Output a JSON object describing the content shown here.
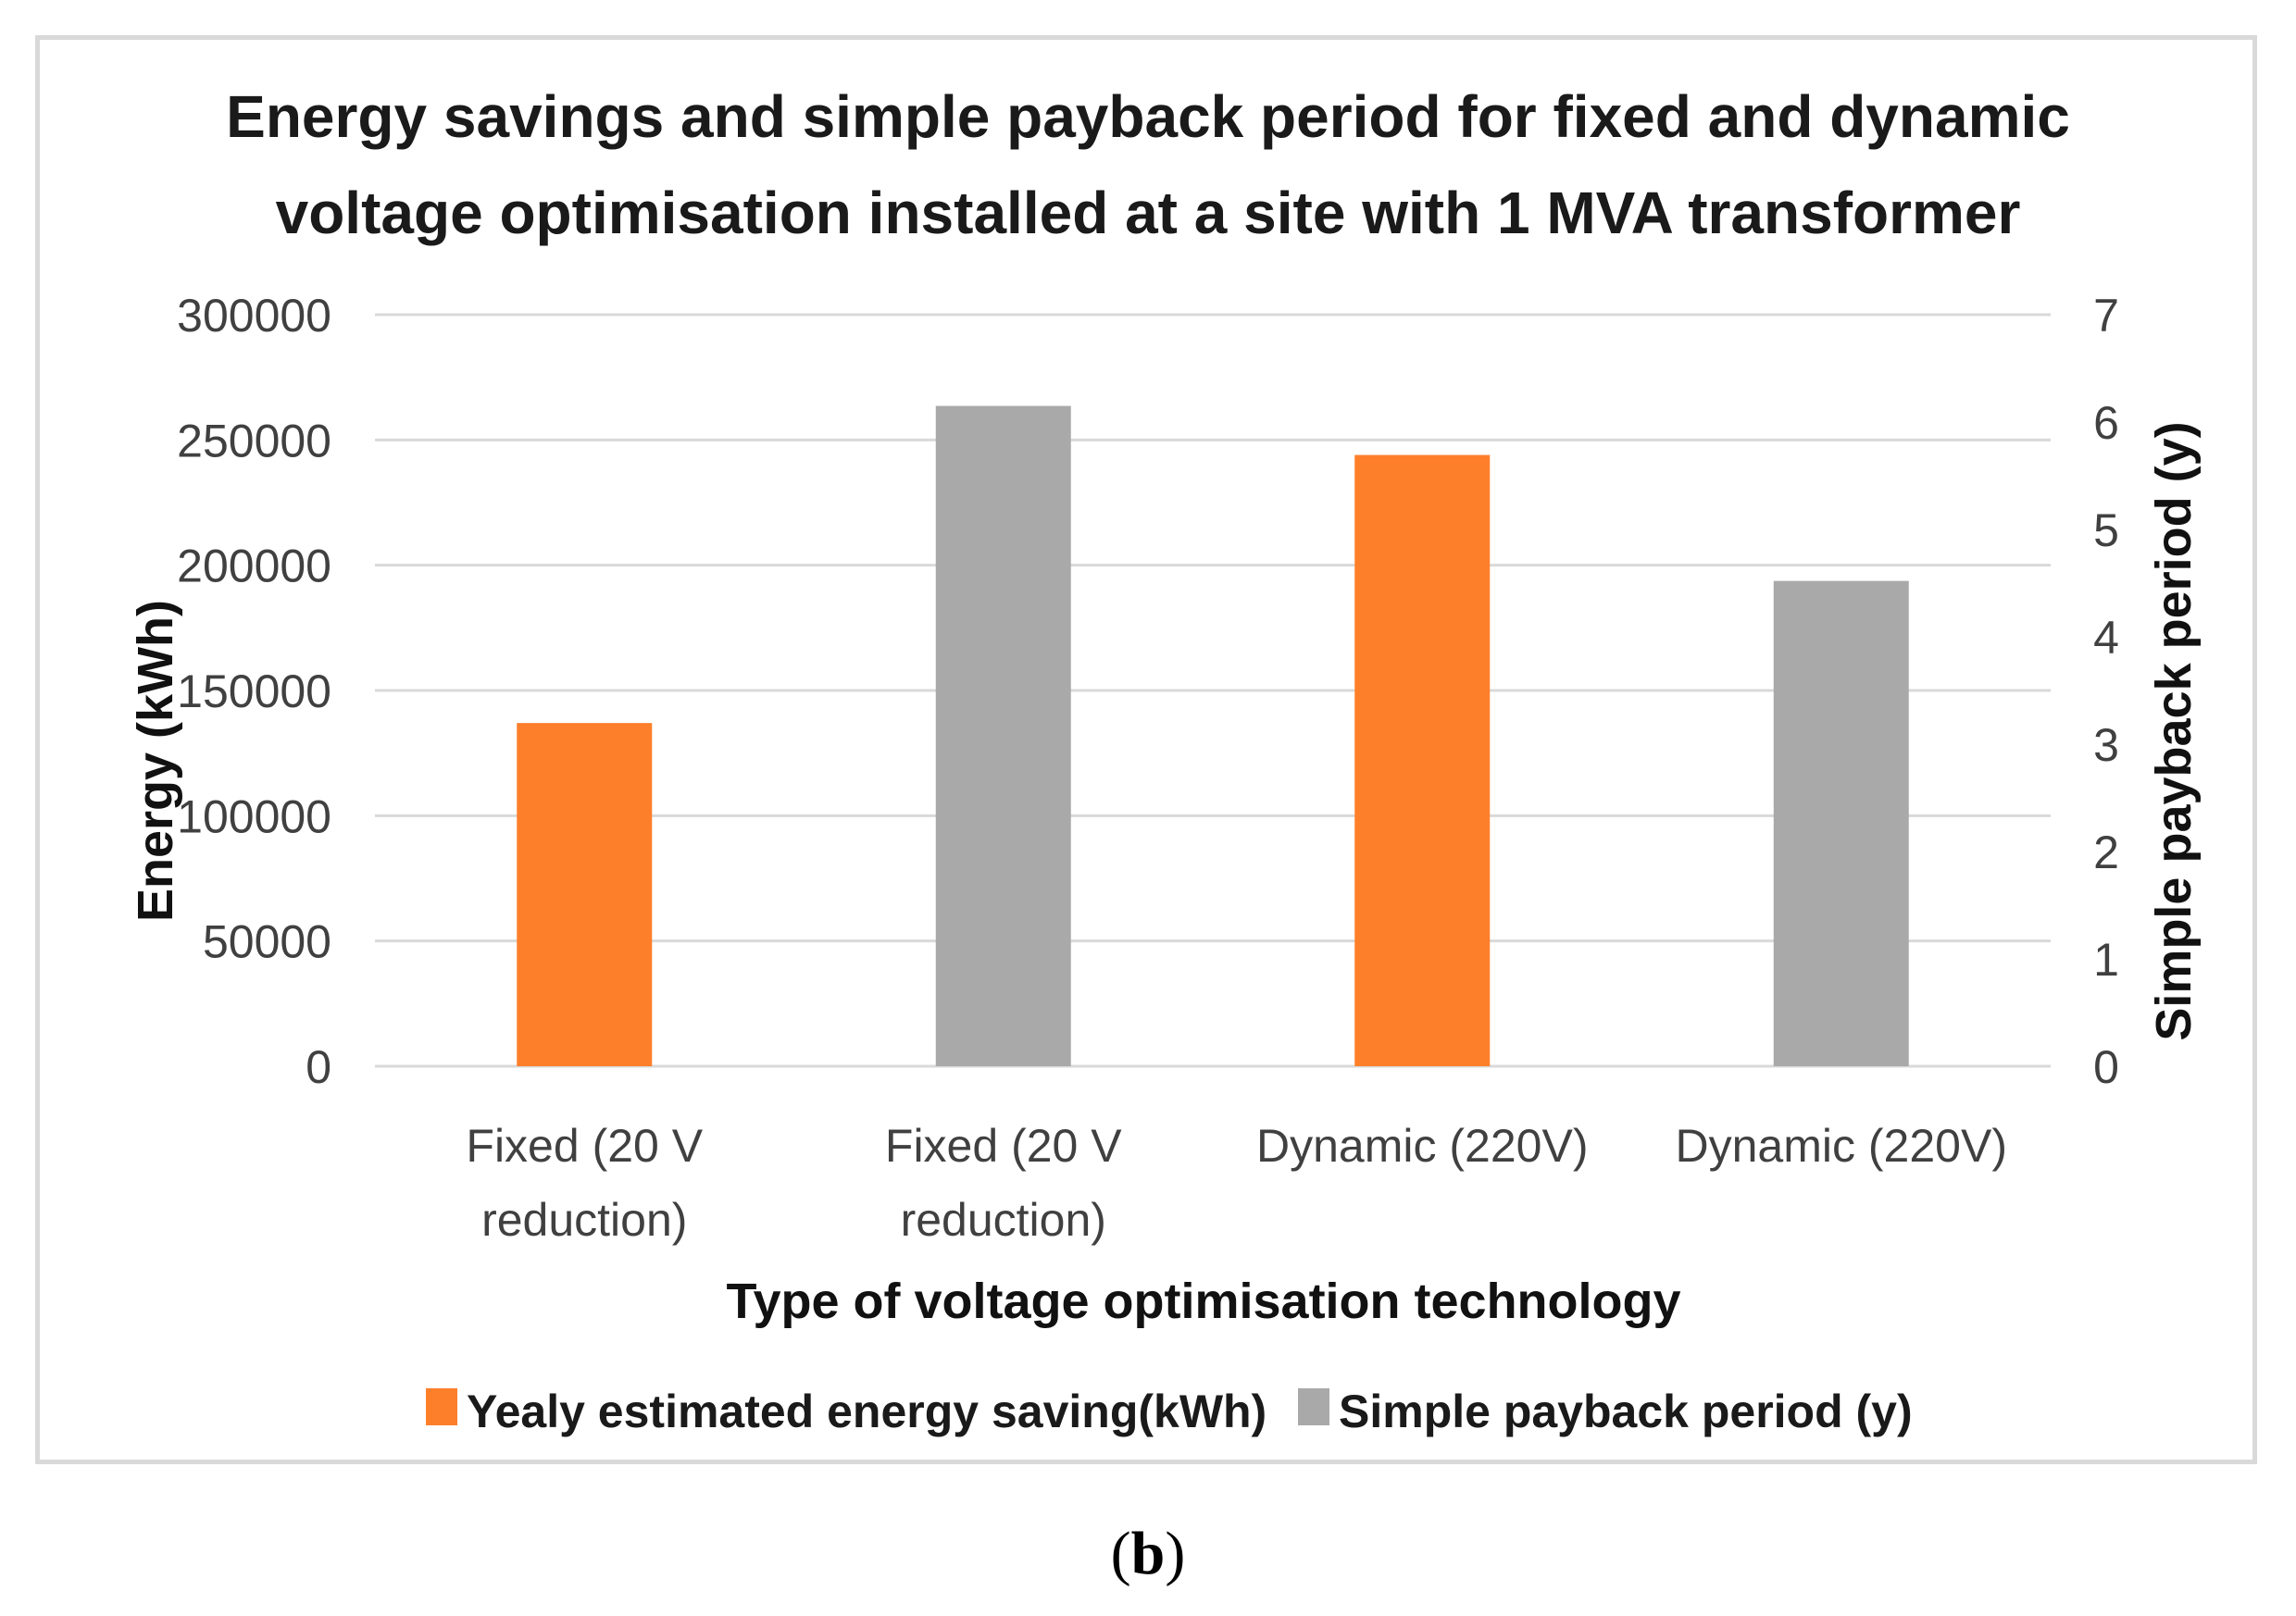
{
  "chart_data": {
    "type": "bar",
    "title_lines": [
      "Energy savings and simple payback period for fixed and dynamic",
      "voltage optimisation installed at a site with 1 MVA transformer"
    ],
    "categories": [
      [
        "Fixed (20 V",
        "reduction)"
      ],
      [
        "Fixed (20 V",
        "reduction)"
      ],
      [
        "Dynamic (220V)"
      ],
      [
        "Dynamic (220V)"
      ]
    ],
    "xlabel": "Type of voltage optimisation  technology",
    "ylabel": "Energy  (kWh)",
    "y2label": "Simple payback period  (y)",
    "ylim": [
      0,
      300000
    ],
    "y2lim": [
      0,
      7
    ],
    "yticks": [
      "0",
      "50000",
      "100000",
      "150000",
      "200000",
      "250000",
      "300000"
    ],
    "y2ticks": [
      "0",
      "1",
      "2",
      "3",
      "4",
      "5",
      "6",
      "7"
    ],
    "grid": true,
    "legend_position": "bottom",
    "series": [
      {
        "name": "Yealy estimated energy saving(kWh)",
        "axis": "left",
        "color": "#fe7f2a",
        "points": [
          {
            "category_index": 0,
            "value": 137000
          },
          {
            "category_index": 2,
            "value": 244000
          }
        ]
      },
      {
        "name": "Simple payback period (y)",
        "axis": "right",
        "color": "#a9a9a9",
        "points": [
          {
            "category_index": 1,
            "value": 6.15
          },
          {
            "category_index": 3,
            "value": 4.52
          }
        ]
      }
    ]
  },
  "caption": {
    "open": "(",
    "letter": "b",
    "close": ")"
  },
  "colors": {
    "grid": "#d9d9d9",
    "frame": "#d9d9d9"
  }
}
